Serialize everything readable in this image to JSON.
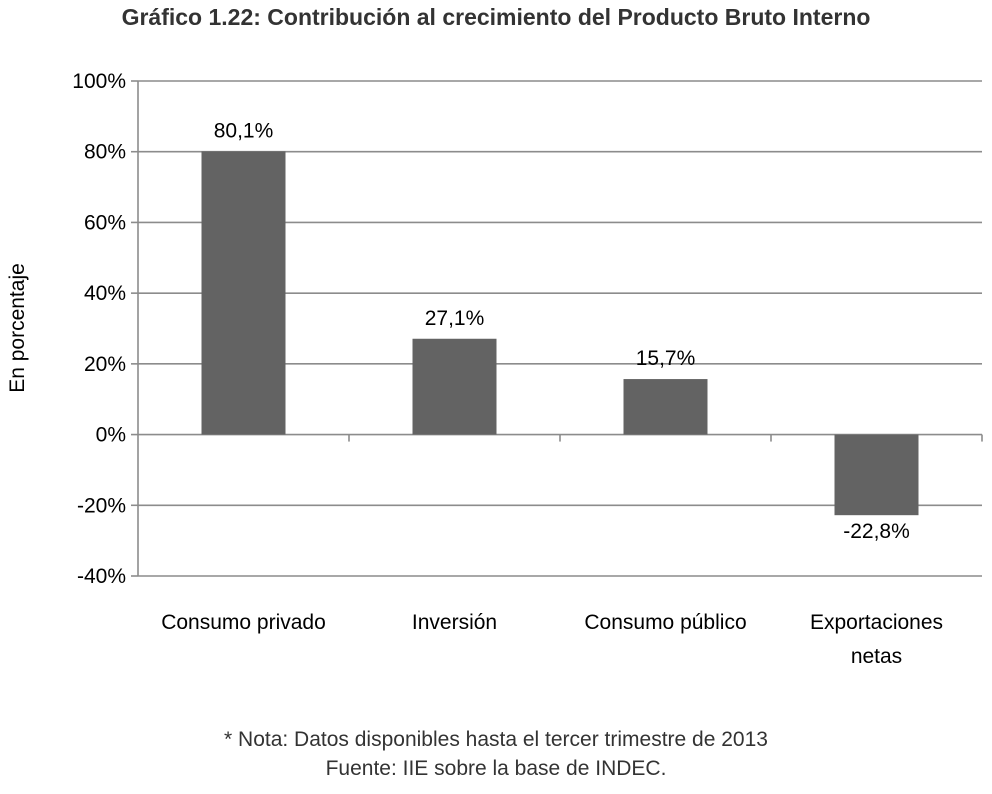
{
  "chart_data": {
    "type": "bar",
    "title": "Gráfico 1.22: Contribución al crecimiento del Producto Bruto Interno",
    "ylabel": "En porcentaje",
    "xlabel": "",
    "categories": [
      [
        "Consumo privado"
      ],
      [
        "Inversión"
      ],
      [
        "Consumo público"
      ],
      [
        "Exportaciones",
        "netas"
      ]
    ],
    "values": [
      80.1,
      27.1,
      15.7,
      -22.8
    ],
    "data_labels": [
      "80,1%",
      "27,1%",
      "15,7%",
      "-22,8%"
    ],
    "ylim": [
      -40,
      100
    ],
    "yticks": [
      100,
      80,
      60,
      40,
      20,
      0,
      -20,
      -40
    ],
    "ytick_labels": [
      "100%",
      "80%",
      "60%",
      "40%",
      "20%",
      "0%",
      "-20%",
      "-40%"
    ],
    "grid": true,
    "bar_color": "#636363",
    "grid_color": "#8c8c8c"
  },
  "footer": {
    "note": "* Nota: Datos disponibles hasta el tercer trimestre de 2013",
    "source": "Fuente: IIE sobre la base de INDEC."
  }
}
